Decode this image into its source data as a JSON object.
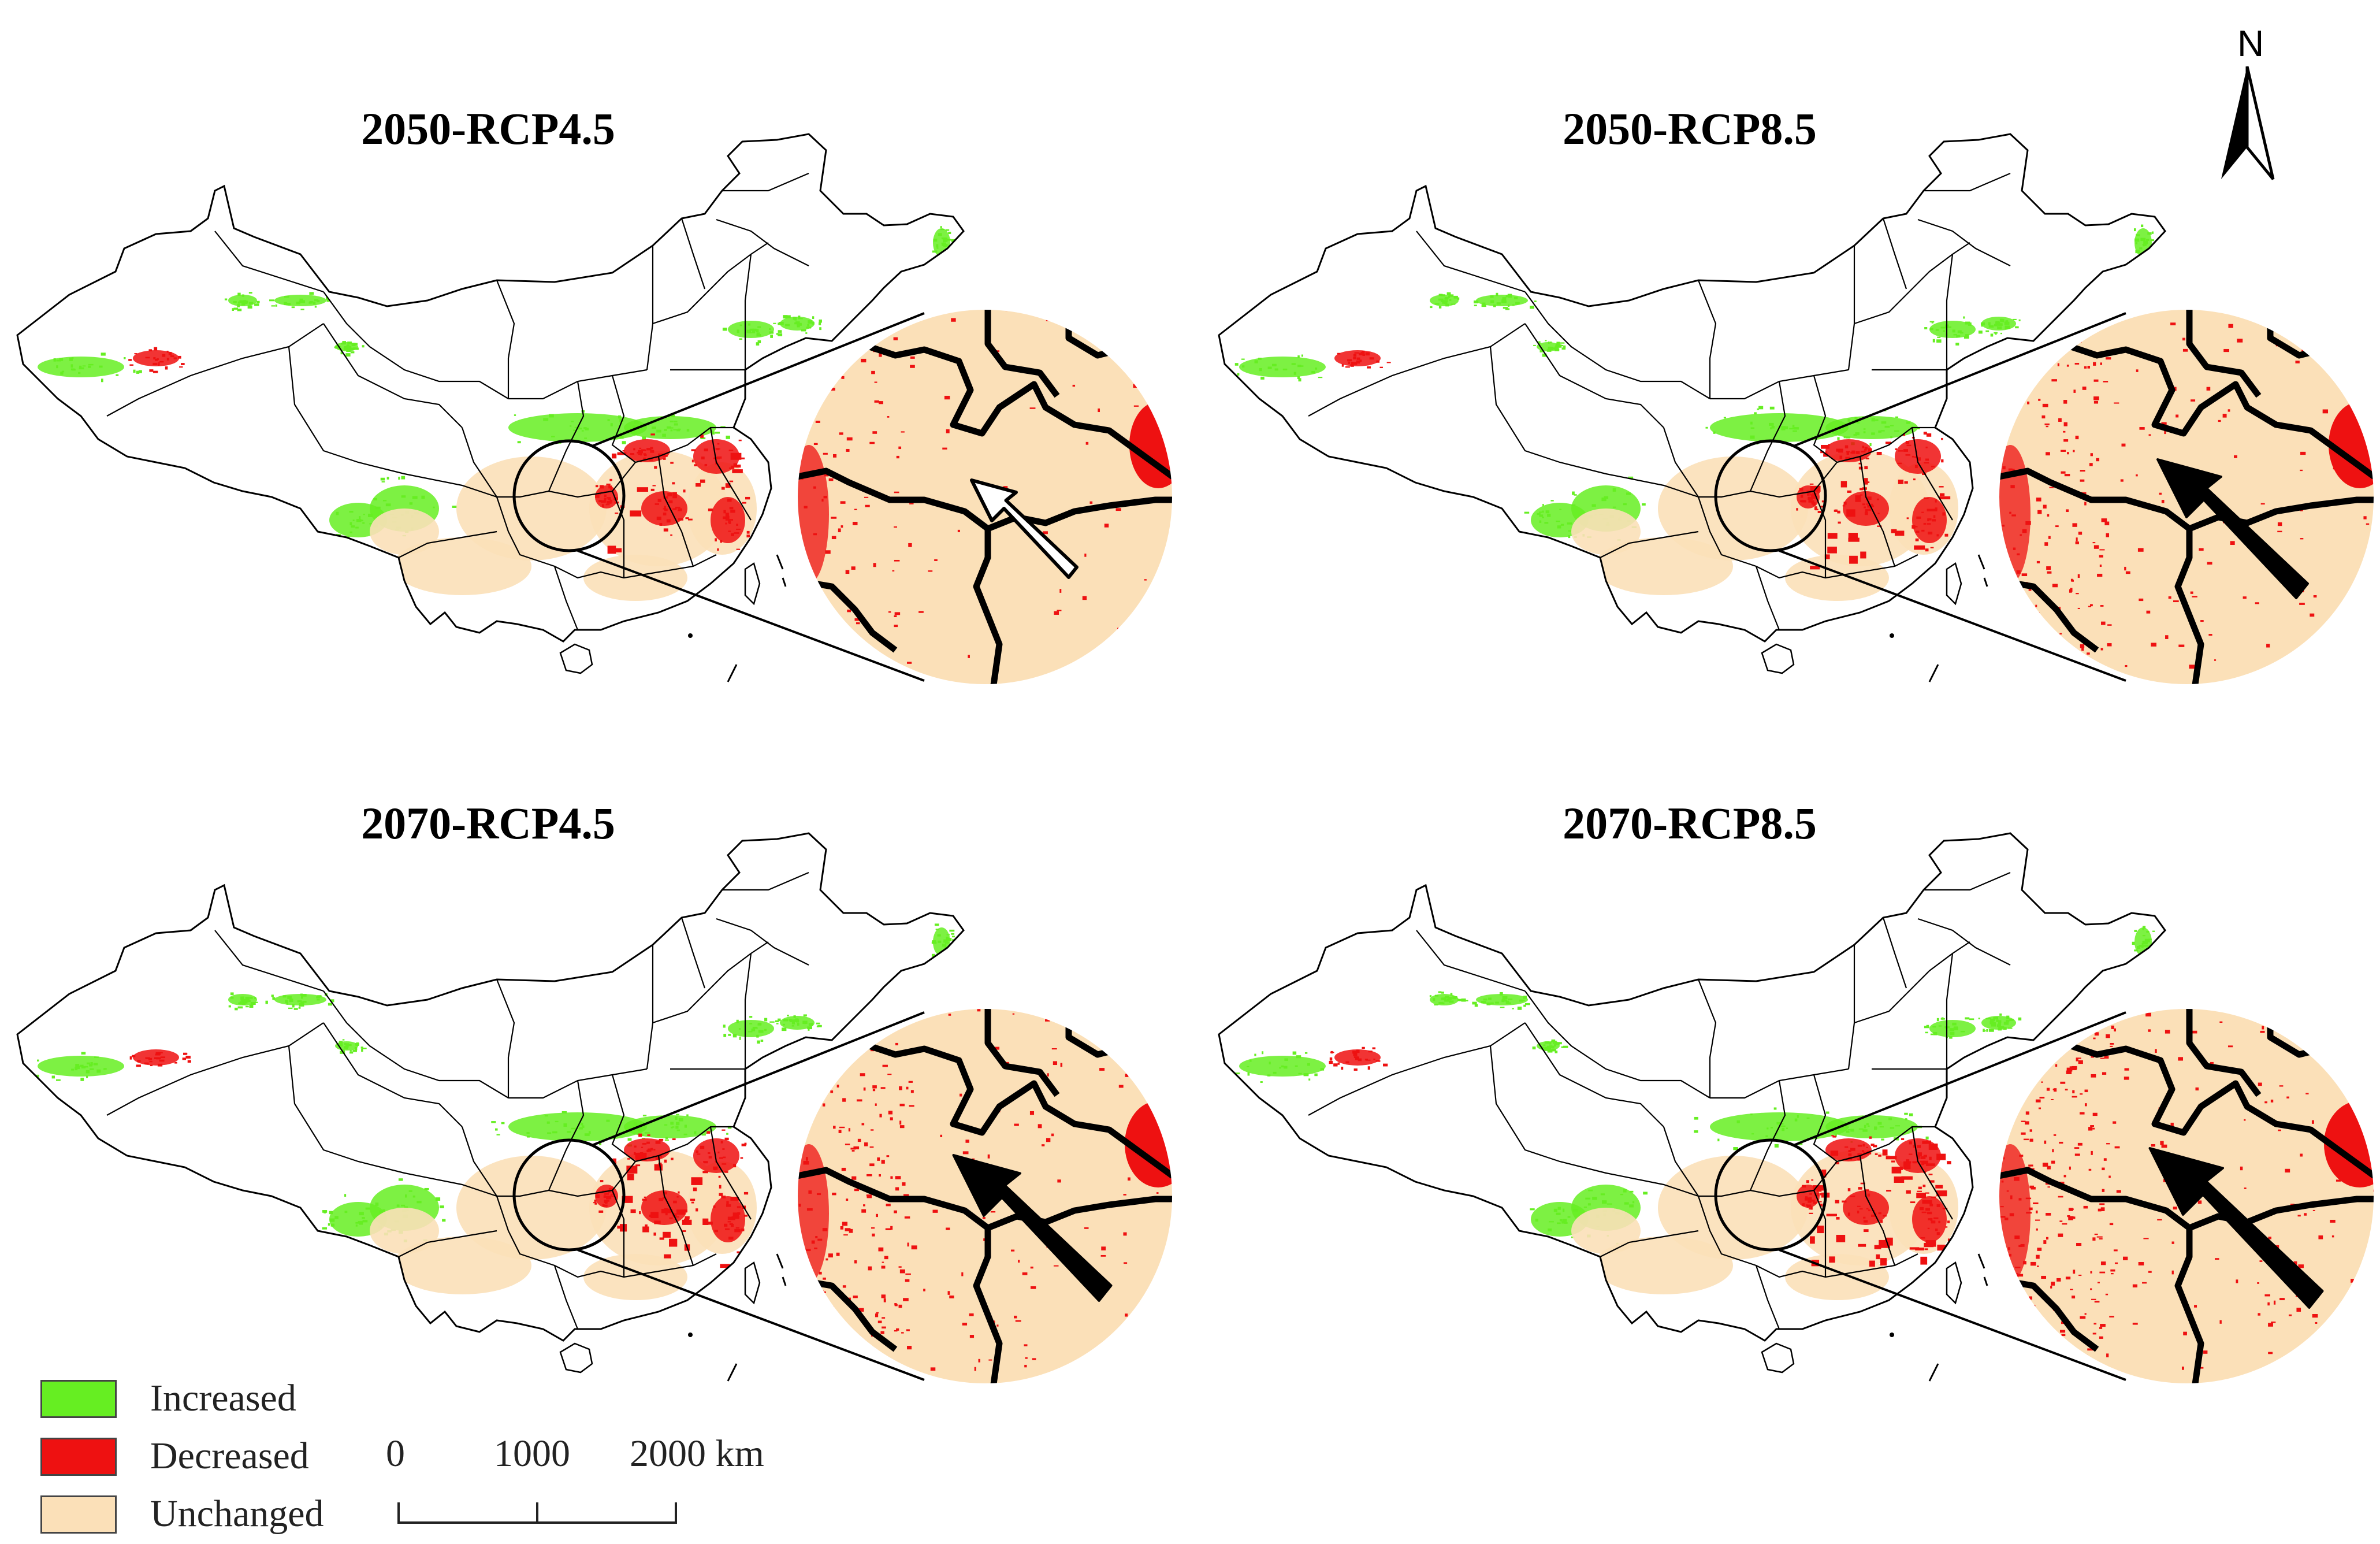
{
  "figure": {
    "panels": [
      {
        "title": "2050-RCP4.5",
        "arrow_style": "outline"
      },
      {
        "title": "2050-RCP8.5",
        "arrow_style": "solid"
      },
      {
        "title": "2070-RCP4.5",
        "arrow_style": "solid"
      },
      {
        "title": "2070-RCP8.5",
        "arrow_style": "solid"
      }
    ],
    "north_label": "N",
    "legend": {
      "items": [
        {
          "label": "Increased",
          "color": "#66EE22"
        },
        {
          "label": "Decreased",
          "color": "#EE1111"
        },
        {
          "label": "Unchanged",
          "color": "#FBE0B8"
        }
      ]
    },
    "scale_bar": {
      "labels": [
        "0",
        "1000",
        "2000 km"
      ],
      "unit": "km"
    },
    "colors": {
      "boundary": "#000000",
      "increased": "#66EE22",
      "decreased": "#EE1111",
      "unchanged": "#FBE0B8"
    }
  }
}
